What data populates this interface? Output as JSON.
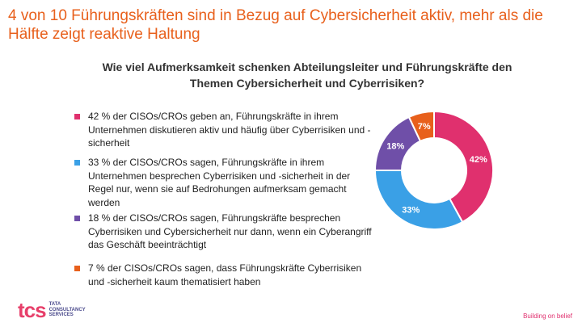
{
  "headline": "4 von 10 Führungskräften sind in Bezug auf Cybersicherheit aktiv, mehr als die Hälfte zeigt reaktive Haltung",
  "chart_data": {
    "type": "pie",
    "title": "Wie viel Aufmerksamkeit schenken Abteilungsleiter und Führungskräfte den Themen Cybersicherheit und Cyberrisiken?",
    "slices": [
      {
        "value": 42,
        "label": "42%",
        "color": "#e0306e",
        "legend": "42 % der CISOs/CROs geben an, Führungskräfte in ihrem Unternehmen diskutieren aktiv und häufig über Cyberrisiken und -sicherheit"
      },
      {
        "value": 33,
        "label": "33%",
        "color": "#3aa0e6",
        "legend": "33 % der CISOs/CROs sagen, Führungskräfte in ihrem Unternehmen besprechen Cyberrisiken und -sicherheit  in der Regel nur, wenn sie auf Bedrohungen aufmerksam gemacht werden"
      },
      {
        "value": 18,
        "label": "18%",
        "color": "#6f4fa8",
        "legend": "18 % der CISOs/CROs sagen, Führungskräfte besprechen Cyberrisiken und Cybersicherheit nur dann, wenn ein Cyberangriff das Geschäft beeinträchtigt"
      },
      {
        "value": 7,
        "label": "7%",
        "color": "#e8601c",
        "legend": "7 % der CISOs/CROs sagen, dass Führungskräfte Cyberrisiken und -sicherheit kaum thematisiert haben"
      }
    ],
    "legend_position": "left",
    "start": "top",
    "direction": "clockwise"
  },
  "footer": {
    "logo_mark": "tcs",
    "logo_lines": [
      "TATA",
      "CONSULTANCY",
      "SERVICES"
    ],
    "tagline": "Building on belief"
  }
}
